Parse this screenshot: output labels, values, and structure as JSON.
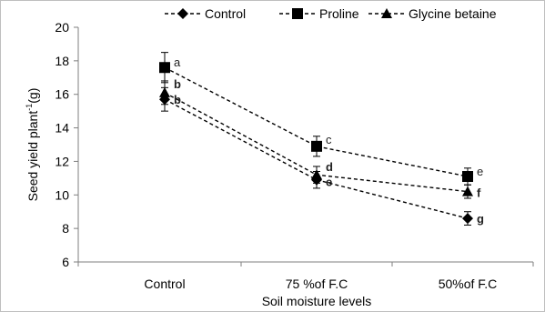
{
  "chart_data": {
    "type": "line",
    "xlabel": "Soil moisture levels",
    "ylabel_main": "Seed yield plant",
    "ylabel_sup": "-1",
    "ylabel_unit": "(g)",
    "categories": [
      "Control",
      "75 %of F.C",
      "50%of F.C"
    ],
    "ylim": [
      6,
      20
    ],
    "yticks": [
      6,
      8,
      10,
      12,
      14,
      16,
      18,
      20
    ],
    "grid": false,
    "legend_position": "top",
    "series": [
      {
        "name": "Control",
        "marker": "diamond",
        "values": [
          15.7,
          10.9,
          8.6
        ],
        "errors": [
          0.7,
          0.5,
          0.4
        ],
        "letters": [
          "b",
          "e",
          "g"
        ],
        "letter_bold": [
          true,
          true,
          true
        ]
      },
      {
        "name": "Proline",
        "marker": "square",
        "values": [
          17.6,
          12.9,
          11.1
        ],
        "errors": [
          0.9,
          0.6,
          0.5
        ],
        "letters": [
          "a",
          "c",
          "e"
        ],
        "letter_bold": [
          false,
          false,
          false
        ]
      },
      {
        "name": "Glycine betaine",
        "marker": "triangle",
        "values": [
          16.1,
          11.2,
          10.2
        ],
        "errors": [
          0.7,
          0.5,
          0.4
        ],
        "letters": [
          "b",
          "d",
          "f"
        ],
        "letter_bold": [
          true,
          true,
          true
        ]
      }
    ]
  }
}
